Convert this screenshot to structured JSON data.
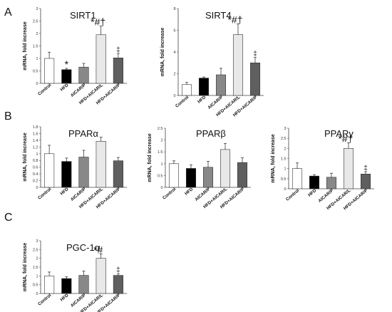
{
  "panel_labels": [
    "A",
    "B",
    "C"
  ],
  "categories": [
    "Control",
    "HFD",
    "AICAR/P",
    "HFD+AICAR/L",
    "HFD+AICAR/P"
  ],
  "colors": {
    "bar_fills": [
      "#ffffff",
      "#000000",
      "#888888",
      "#e8e8e8",
      "#5f5f5f"
    ],
    "axis": "#444444"
  },
  "chart_data": [
    {
      "type": "bar",
      "title": "SIRT1",
      "ylabel": "mRNA, fold increase",
      "ylim": [
        0,
        3
      ],
      "yticks": [
        "0",
        "0.5",
        "1",
        "1.5",
        "2",
        "2.5",
        "3"
      ],
      "grid": false,
      "categories": [
        "Control",
        "HFD",
        "AICAR/P",
        "HFD+AICAR/L",
        "HFD+AICAR/P"
      ],
      "values": [
        1.0,
        0.55,
        0.65,
        1.95,
        1.02
      ],
      "errors": [
        0.25,
        0.05,
        0.15,
        0.35,
        0.18
      ],
      "annotations": [
        "",
        "*",
        "",
        "*#†",
        "‡"
      ]
    },
    {
      "type": "bar",
      "title": "SIRT4",
      "ylabel": "mRNA, fold increase",
      "ylim": [
        0,
        8
      ],
      "yticks": [
        "0",
        "2",
        "4",
        "6",
        "8"
      ],
      "grid": false,
      "categories": [
        "Control",
        "HFD",
        "AICAR/P",
        "HFD+AICAR/L",
        "HFD+AICAR/P"
      ],
      "values": [
        1.0,
        1.6,
        1.9,
        5.6,
        3.0
      ],
      "errors": [
        0.2,
        0.1,
        0.6,
        1.0,
        0.5
      ],
      "annotations": [
        "",
        "",
        "",
        "*#†",
        "‡"
      ]
    },
    {
      "type": "bar",
      "title": "PPARα",
      "ylabel": "mRNA, fold increase",
      "ylim": [
        0,
        1.8
      ],
      "yticks": [
        "0",
        "0.2",
        "0.4",
        "0.6",
        "0.8",
        "1",
        "1.2",
        "1.4",
        "1.6",
        "1.8"
      ],
      "grid": false,
      "categories": [
        "Control",
        "HFD",
        "AICAR/P",
        "HFD+AICAR/L",
        "HFD+AICAR/P"
      ],
      "values": [
        1.0,
        0.77,
        0.9,
        1.37,
        0.79
      ],
      "errors": [
        0.25,
        0.1,
        0.2,
        0.12,
        0.1
      ],
      "annotations": [
        "",
        "",
        "",
        "",
        ""
      ]
    },
    {
      "type": "bar",
      "title": "PPARβ",
      "ylabel": "mRNA, fold increase",
      "ylim": [
        0,
        2.5
      ],
      "yticks": [
        "0",
        "0.5",
        "1",
        "1.5",
        "2",
        "2.5"
      ],
      "grid": false,
      "categories": [
        "Control",
        "HFD",
        "AICAR/P",
        "HFD+AICAR/L",
        "HFD+AICAR/P"
      ],
      "values": [
        1.0,
        0.8,
        0.85,
        1.6,
        1.05
      ],
      "errors": [
        0.12,
        0.15,
        0.25,
        0.25,
        0.2
      ],
      "annotations": [
        "",
        "",
        "",
        "",
        ""
      ]
    },
    {
      "type": "bar",
      "title": "PPARγ",
      "ylabel": "mRNA, fold increase",
      "ylim": [
        0,
        3
      ],
      "yticks": [
        "0",
        "0.5",
        "1",
        "1.5",
        "2",
        "2.5",
        "3"
      ],
      "grid": false,
      "categories": [
        "Control",
        "HFD",
        "AICAR/P",
        "HFD+AICAR/L",
        "HFD+AICAR/P"
      ],
      "values": [
        1.0,
        0.63,
        0.57,
        2.0,
        0.73
      ],
      "errors": [
        0.28,
        0.07,
        0.2,
        0.28,
        0.12
      ],
      "annotations": [
        "",
        "",
        "",
        "*#†",
        "‡"
      ]
    },
    {
      "type": "bar",
      "title": "PGC-1α",
      "ylabel": "mRNA, fold increase",
      "ylim": [
        0,
        3
      ],
      "yticks": [
        "0",
        "0.5",
        "1",
        "1.5",
        "2",
        "2.5",
        "3"
      ],
      "grid": false,
      "categories": [
        "Control",
        "HFD",
        "AICAR/P",
        "HFD+AICAR/L",
        "HFD+AICAR/P"
      ],
      "values": [
        1.0,
        0.85,
        1.03,
        2.0,
        1.03
      ],
      "errors": [
        0.22,
        0.1,
        0.25,
        0.25,
        0.1
      ],
      "annotations": [
        "",
        "",
        "",
        "*#",
        "‡"
      ]
    }
  ]
}
